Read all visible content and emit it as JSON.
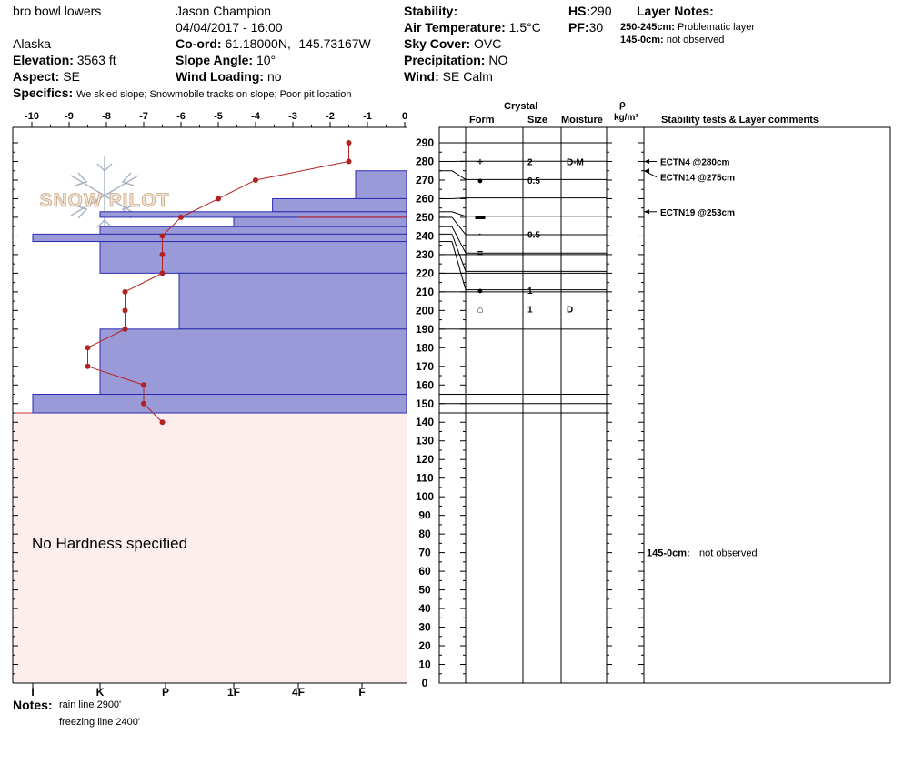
{
  "header": {
    "location_name": "bro bowl lowers",
    "observer": "Jason Champion",
    "datetime": "04/04/2017 - 16:00",
    "region": "Alaska",
    "elevation_label": "Elevation:",
    "elevation_value": "3563 ft",
    "aspect_label": "Aspect:",
    "aspect_value": "SE",
    "coord_label": "Co-ord:",
    "coord_value": "61.18000N, -145.73167W",
    "slope_label": "Slope Angle:",
    "slope_value": "10°",
    "wind_loading_label": "Wind Loading:",
    "wind_loading_value": "no",
    "specifics_label": "Specifics:",
    "specifics_value": "We skied slope; Snowmobile tracks on slope; Poor pit location",
    "stability_label": "Stability:",
    "air_temp_label": "Air Temperature:",
    "air_temp_value": "1.5°C",
    "sky_cover_label": "Sky Cover:",
    "sky_cover_value": "OVC",
    "precip_label": "Precipitation:",
    "precip_value": "NO",
    "wind_label": "Wind:",
    "wind_value": "SE Calm",
    "hs_label": "HS:",
    "hs_value": "290",
    "pf_label": "PF:",
    "pf_value": "30",
    "layer_notes_title": "Layer Notes:",
    "layer_notes": [
      {
        "range": "250-245cm:",
        "text": "Problematic layer"
      },
      {
        "range": "145-0cm:",
        "text": "not observed"
      }
    ]
  },
  "columns": {
    "crystal": "Crystal",
    "form": "Form",
    "size": "Size",
    "moisture": "Moisture",
    "rho": "ρ",
    "density_unit": "kg/m³",
    "stability_comments": "Stability tests & Layer comments"
  },
  "watermark": "SNOW PILOT",
  "no_hardness_text": "No Hardness specified",
  "notes": {
    "label": "Notes:",
    "lines": [
      "rain line 2900'",
      "freezing line 2400'"
    ]
  },
  "chart_data": {
    "type": "snow_profile",
    "height_axis": {
      "min": 0,
      "max": 290,
      "step": 10,
      "unit": "cm"
    },
    "temperature_axis": {
      "min": -10,
      "max": 0,
      "ticks": [
        -10,
        -9,
        -8,
        -7,
        -6,
        -5,
        -4,
        -3,
        -2,
        -1,
        0
      ],
      "unit": "°C"
    },
    "hardness_ticks": [
      "I",
      "K",
      "P",
      "1F",
      "4F",
      "F"
    ],
    "hardness_layers": [
      {
        "top": 290,
        "bottom": 275,
        "hardness_index": 6.8
      },
      {
        "top": 275,
        "bottom": 260,
        "hardness_index": 5.9
      },
      {
        "top": 260,
        "bottom": 253,
        "hardness_index": 4.6
      },
      {
        "top": 253,
        "bottom": 250,
        "hardness_index": 2.0
      },
      {
        "top": 250,
        "bottom": 245,
        "hardness_index": 4.0
      },
      {
        "top": 245,
        "bottom": 241,
        "hardness_index": 2.0
      },
      {
        "top": 241,
        "bottom": 237,
        "hardness_index": 1.0
      },
      {
        "top": 237,
        "bottom": 220,
        "hardness_index": 2.0
      },
      {
        "top": 220,
        "bottom": 190,
        "hardness_index": 3.2
      },
      {
        "top": 190,
        "bottom": 155,
        "hardness_index": 2.0
      },
      {
        "top": 155,
        "bottom": 145,
        "hardness_index": 1.0
      }
    ],
    "no_hardness_zone": {
      "top": 145,
      "bottom": 0
    },
    "problem_layer_line": 250,
    "temperature_profile": [
      {
        "height": 290,
        "temp": -1.5
      },
      {
        "height": 280,
        "temp": -1.5
      },
      {
        "height": 270,
        "temp": -4.0
      },
      {
        "height": 260,
        "temp": -5.0
      },
      {
        "height": 250,
        "temp": -6.0
      },
      {
        "height": 240,
        "temp": -6.5
      },
      {
        "height": 230,
        "temp": -6.5
      },
      {
        "height": 220,
        "temp": -6.5
      },
      {
        "height": 210,
        "temp": -7.5
      },
      {
        "height": 200,
        "temp": -7.5
      },
      {
        "height": 190,
        "temp": -7.5
      },
      {
        "height": 180,
        "temp": -8.5
      },
      {
        "height": 170,
        "temp": -8.5
      },
      {
        "height": 160,
        "temp": -7.0
      },
      {
        "height": 150,
        "temp": -7.0
      },
      {
        "height": 140,
        "temp": -6.5
      }
    ],
    "layer_boundaries": [
      290,
      280,
      275,
      260,
      253,
      250,
      245,
      241,
      237,
      230,
      220,
      210,
      190,
      155,
      150,
      145
    ],
    "crystal_rows": [
      {
        "height": 280,
        "form": "+",
        "size": "2",
        "moisture": "D-M"
      },
      {
        "height": 270,
        "form": "●",
        "size": "0.5",
        "moisture": ""
      },
      {
        "height": 251,
        "form": "▬",
        "size": "",
        "moisture": ""
      },
      {
        "height": 241,
        "form": "·",
        "size": "0.5",
        "moisture": ""
      },
      {
        "height": 231,
        "form": "=",
        "size": "",
        "moisture": ""
      },
      {
        "height": 211,
        "form": "●",
        "size": "1",
        "moisture": ""
      },
      {
        "height": 201,
        "form": "⌂",
        "size": "1",
        "moisture": "D"
      }
    ],
    "stability_tests": [
      {
        "height": 280,
        "label": "ECTN4 @280cm"
      },
      {
        "height": 275,
        "label": "ECTN14 @275cm"
      },
      {
        "height": 253,
        "label": "ECTN19 @253cm"
      }
    ],
    "layer_comment": {
      "height": 70,
      "range": "145-0cm:",
      "text": "not observed"
    }
  }
}
